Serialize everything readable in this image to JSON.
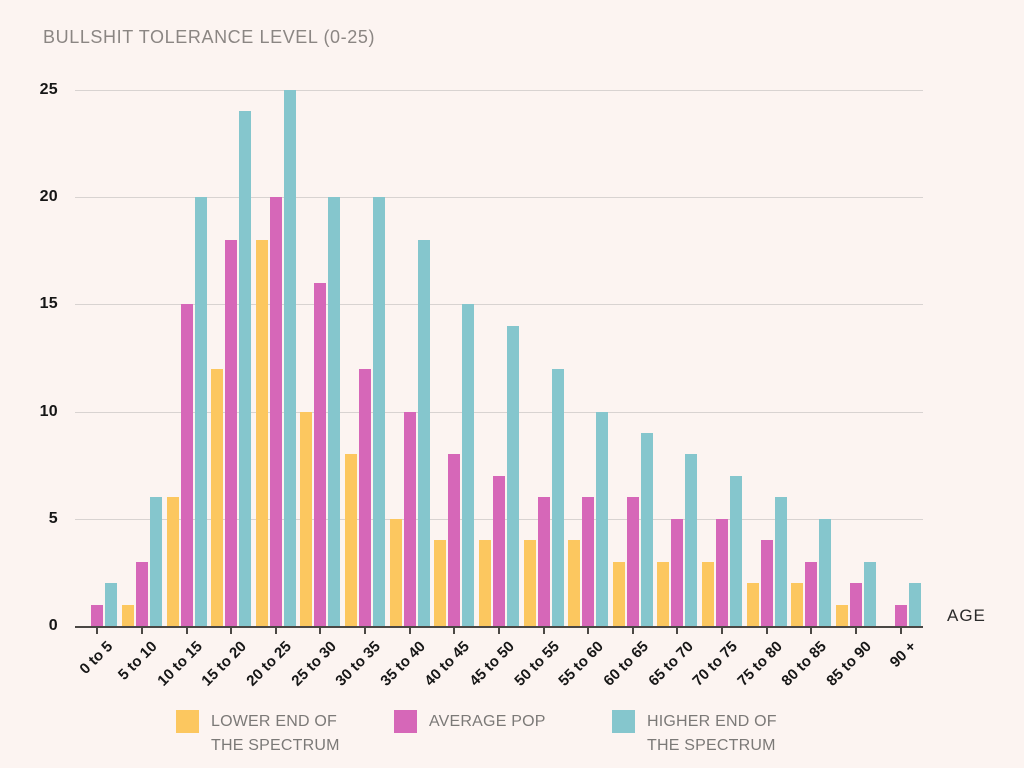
{
  "header": {
    "title": "BULLSHIT TOLERANCE LEVEL (0-25)"
  },
  "axes": {
    "x_axis_label": "AGE",
    "y_ticks_display": [
      25,
      20,
      15,
      10,
      5,
      0
    ]
  },
  "legend": {
    "items": [
      {
        "key": "lower",
        "color": "#FCC75F",
        "lines": [
          "LOWER END OF",
          "THE SPECTRUM"
        ]
      },
      {
        "key": "average",
        "color": "#D667B8",
        "lines": [
          "AVERAGE POP"
        ]
      },
      {
        "key": "higher",
        "color": "#85C6CD",
        "lines": [
          "HIGHER END OF",
          "THE SPECTRUM"
        ]
      }
    ]
  },
  "chart_data": {
    "type": "bar",
    "title": "BULLSHIT TOLERANCE LEVEL (0-25)",
    "xlabel": "AGE",
    "ylabel": "",
    "ylim": [
      0,
      25
    ],
    "y_ticks": [
      0,
      5,
      10,
      15,
      20,
      25
    ],
    "grid": true,
    "legend_position": "bottom",
    "categories": [
      "0 to 5",
      "5 to 10",
      "10 to 15",
      "15 to 20",
      "20 to 25",
      "25 to 30",
      "30 to 35",
      "35 to 40",
      "40 to 45",
      "45 to 50",
      "50 to 55",
      "55 to 60",
      "60 to 65",
      "65 to 70",
      "70 to 75",
      "75 to 80",
      "80 to 85",
      "85 to 90",
      "90 +"
    ],
    "series": [
      {
        "name": "LOWER END OF THE SPECTRUM",
        "key": "lower",
        "color": "#FCC75F",
        "values": [
          0,
          1,
          6,
          12,
          18,
          10,
          8,
          5,
          4,
          4,
          4,
          4,
          3,
          3,
          3,
          2,
          2,
          1,
          0
        ]
      },
      {
        "name": "AVERAGE POP",
        "key": "average",
        "color": "#D667B8",
        "values": [
          1,
          3,
          15,
          18,
          20,
          16,
          12,
          10,
          8,
          7,
          6,
          6,
          6,
          5,
          5,
          4,
          3,
          2,
          1
        ]
      },
      {
        "name": "HIGHER END OF THE SPECTRUM",
        "key": "higher",
        "color": "#85C6CD",
        "values": [
          2,
          6,
          20,
          24,
          25,
          20,
          20,
          18,
          15,
          14,
          12,
          10,
          9,
          8,
          7,
          6,
          5,
          3,
          2
        ]
      }
    ]
  }
}
